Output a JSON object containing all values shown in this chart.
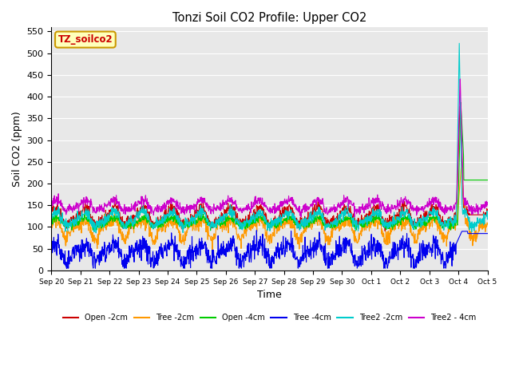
{
  "title": "Tonzi Soil CO2 Profile: Upper CO2",
  "xlabel": "Time",
  "ylabel": "Soil CO2 (ppm)",
  "ylim": [
    0,
    560
  ],
  "yticks": [
    0,
    50,
    100,
    150,
    200,
    250,
    300,
    350,
    400,
    450,
    500,
    550
  ],
  "figure_bg": "#ffffff",
  "plot_bg_color": "#e8e8e8",
  "grid_color": "#ffffff",
  "series": {
    "open_2cm": {
      "label": "Open -2cm",
      "color": "#cc0000"
    },
    "tree_2cm": {
      "label": "Tree -2cm",
      "color": "#ff9900"
    },
    "open_4cm": {
      "label": "Open -4cm",
      "color": "#00cc00"
    },
    "tree_4cm": {
      "label": "Tree -4cm",
      "color": "#0000ee"
    },
    "tree2_2cm": {
      "label": "Tree2 -2cm",
      "color": "#00cccc"
    },
    "tree2_4cm": {
      "label": "Tree2 - 4cm",
      "color": "#cc00cc"
    }
  },
  "watermark": "TZ_soilco2",
  "watermark_bg": "#ffffbb",
  "watermark_border": "#cc9900",
  "watermark_text_color": "#cc0000",
  "seed": 42
}
